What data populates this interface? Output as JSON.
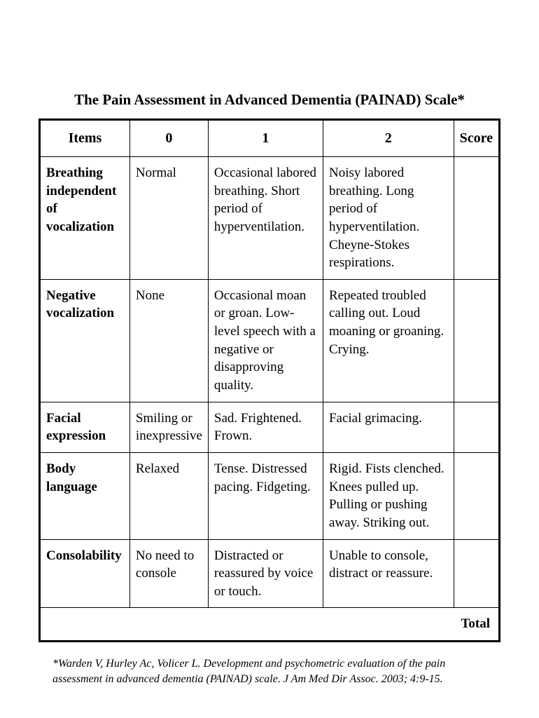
{
  "title": "The Pain Assessment in Advanced Dementia (PAINAD) Scale*",
  "headers": {
    "items": "Items",
    "col0": "0",
    "col1": "1",
    "col2": "2",
    "score": "Score"
  },
  "rows": [
    {
      "item": "Breathing independent of vocalization",
      "col0": "Normal",
      "col1": "Occasional labored breathing. Short period of hyperventilation.",
      "col2": "Noisy labored breathing. Long period of hyperventilation. Cheyne-Stokes respirations.",
      "score": ""
    },
    {
      "item": "Negative vocalization",
      "col0": "None",
      "col1": "Occasional moan or groan.  Low-level speech with a negative or disapproving quality.",
      "col2": "Repeated troubled calling out. Loud moaning or groaning. Crying.",
      "score": ""
    },
    {
      "item": "Facial expression",
      "col0": "Smiling or inexpressive",
      "col1": "Sad. Frightened. Frown.",
      "col2": "Facial grimacing.",
      "score": ""
    },
    {
      "item": "Body language",
      "col0": "Relaxed",
      "col1": "Tense. Distressed pacing. Fidgeting.",
      "col2": "Rigid. Fists clenched. Knees pulled up. Pulling or pushing away. Striking out.",
      "score": ""
    },
    {
      "item": "Consolability",
      "col0": "No need to console",
      "col1": "Distracted or reassured by voice or touch.",
      "col2": "Unable to console, distract or reassure.",
      "score": ""
    }
  ],
  "total_label": "Total",
  "citation": "*Warden V, Hurley Ac, Volicer L. Development and psychometric evaluation of the pain assessment in advanced dementia (PAINAD) scale. J Am Med Dir Assoc. 2003; 4:9-15."
}
